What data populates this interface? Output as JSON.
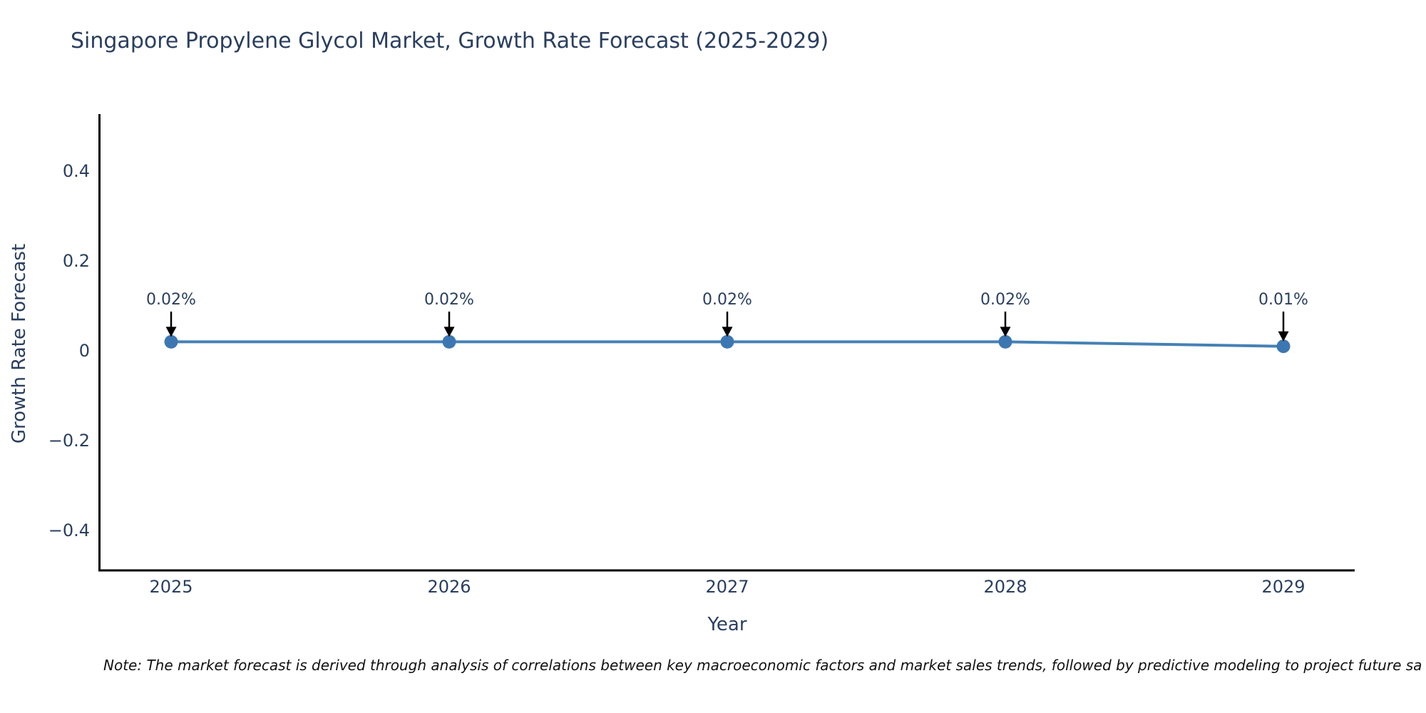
{
  "chart_data": {
    "type": "line",
    "title": "Singapore Propylene Glycol Market, Growth Rate Forecast (2025-2029)",
    "xlabel": "Year",
    "ylabel": "Growth Rate Forecast",
    "categories": [
      "2025",
      "2026",
      "2027",
      "2028",
      "2029"
    ],
    "series": [
      {
        "name": "Growth Rate Forecast",
        "values": [
          0.02,
          0.02,
          0.02,
          0.02,
          0.01
        ],
        "point_labels": [
          "0.02%",
          "0.02%",
          "0.02%",
          "0.02%",
          "0.01%"
        ]
      }
    ],
    "ytick_labels": [
      "0.4",
      "0.2",
      "0",
      "−0.2",
      "−0.4"
    ],
    "ytick_values": [
      0.4,
      0.2,
      0,
      -0.2,
      -0.4
    ],
    "ylim": [
      -0.49,
      0.53
    ],
    "grid": false,
    "legend_position": "none",
    "annotation_style": "value label above point with downward black arrow",
    "colors": {
      "line": "#4581b5",
      "marker": "#3d77b2",
      "axis": "#000000",
      "tick_text": "#2a3f5f",
      "annotation_text": "#2a3f5f",
      "arrow": "#000000",
      "title_text": "#2a3f5f",
      "note_text": "#111111",
      "background": "#ffffff"
    }
  },
  "note": {
    "text": "Note: The market forecast is derived through analysis of correlations between key macroeconomic factors and market sales trends, followed by predictive modeling to project future sa"
  }
}
